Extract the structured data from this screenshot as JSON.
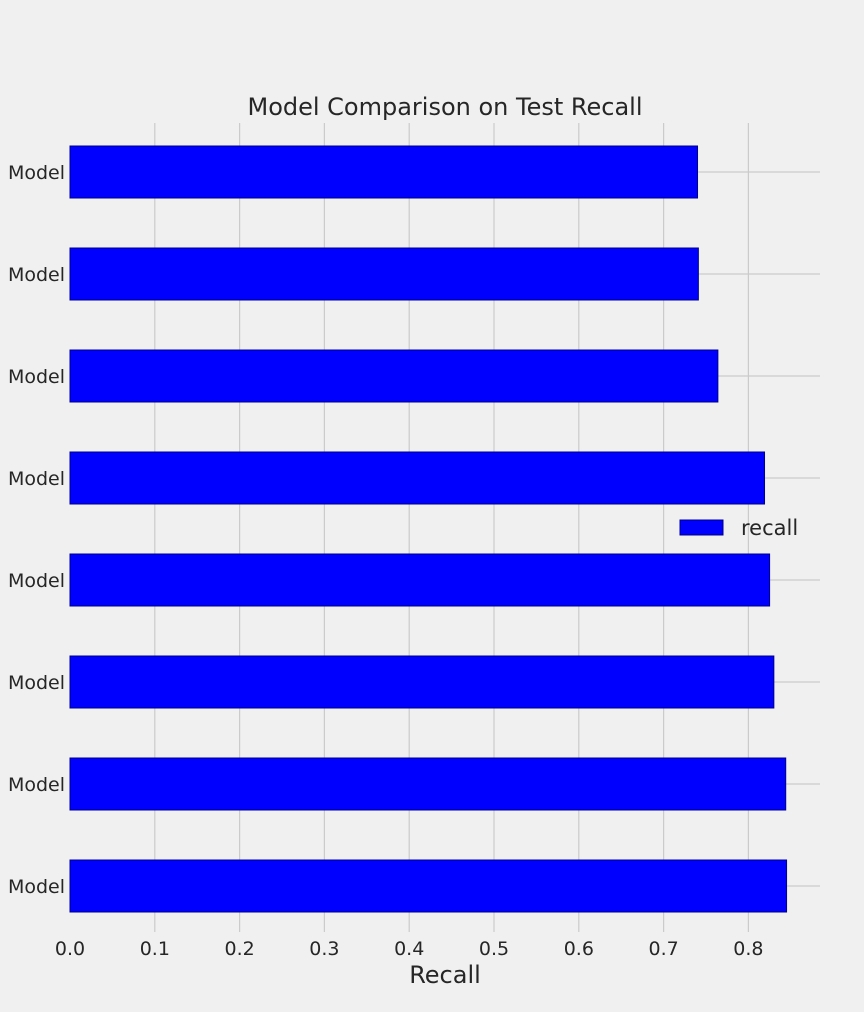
{
  "chart_data": {
    "type": "bar",
    "orientation": "horizontal",
    "title": "Model Comparison on Test Recall",
    "xlabel": "Recall",
    "ylabel": "",
    "categories": [
      "Model",
      "Model",
      "Model",
      "Model",
      "Model",
      "Model",
      "Model",
      "Model"
    ],
    "series": [
      {
        "name": "recall",
        "values": [
          0.74,
          0.741,
          0.764,
          0.819,
          0.825,
          0.83,
          0.844,
          0.845
        ]
      }
    ],
    "xlim": [
      0,
      0.885
    ],
    "xticks": [
      "0.0",
      "0.1",
      "0.2",
      "0.3",
      "0.4",
      "0.5",
      "0.6",
      "0.7",
      "0.8"
    ],
    "grid": true,
    "legend_position": "right",
    "colors": {
      "background": "#f0f0f0",
      "bar": "#0000ff",
      "bar_edge": "#00008b",
      "grid": "#cbcbcb",
      "text": "#262626"
    }
  }
}
